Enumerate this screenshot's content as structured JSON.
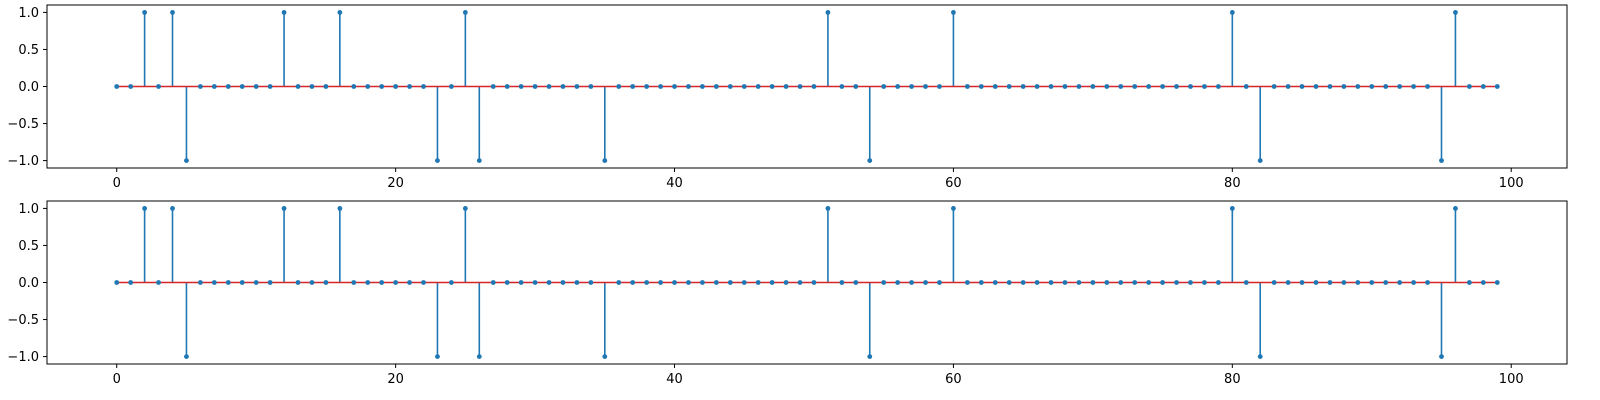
{
  "chart_data": [
    {
      "type": "stem",
      "x": [
        0,
        1,
        2,
        3,
        4,
        5,
        6,
        7,
        8,
        9,
        10,
        11,
        12,
        13,
        14,
        15,
        16,
        17,
        18,
        19,
        20,
        21,
        22,
        23,
        24,
        25,
        26,
        27,
        28,
        29,
        30,
        31,
        32,
        33,
        34,
        35,
        36,
        37,
        38,
        39,
        40,
        41,
        42,
        43,
        44,
        45,
        46,
        47,
        48,
        49,
        50,
        51,
        52,
        53,
        54,
        55,
        56,
        57,
        58,
        59,
        60,
        61,
        62,
        63,
        64,
        65,
        66,
        67,
        68,
        69,
        70,
        71,
        72,
        73,
        74,
        75,
        76,
        77,
        78,
        79,
        80,
        81,
        82,
        83,
        84,
        85,
        86,
        87,
        88,
        89,
        90,
        91,
        92,
        93,
        94,
        95,
        96,
        97,
        98,
        99
      ],
      "values": [
        0,
        0,
        1,
        0,
        1,
        -1,
        0,
        0,
        0,
        0,
        0,
        0,
        1,
        0,
        0,
        0,
        1,
        0,
        0,
        0,
        0,
        0,
        0,
        -1,
        0,
        1,
        -1,
        0,
        0,
        0,
        0,
        0,
        0,
        0,
        0,
        -1,
        0,
        0,
        0,
        0,
        0,
        0,
        0,
        0,
        0,
        0,
        0,
        0,
        0,
        0,
        0,
        1,
        0,
        0,
        -1,
        0,
        0,
        0,
        0,
        0,
        1,
        0,
        0,
        0,
        0,
        0,
        0,
        0,
        0,
        0,
        0,
        0,
        0,
        0,
        0,
        0,
        0,
        0,
        0,
        0,
        1,
        0,
        -1,
        0,
        0,
        0,
        0,
        0,
        0,
        0,
        0,
        0,
        0,
        0,
        0,
        -1,
        1,
        0,
        0,
        0
      ],
      "xlim": [
        -5,
        104
      ],
      "ylim": [
        -1.1,
        1.1
      ],
      "xticks": [
        "0",
        "20",
        "40",
        "60",
        "80",
        "100"
      ],
      "yticks": [
        "1.0",
        "0.5",
        "0.0",
        "−0.5",
        "−1.0"
      ],
      "grid": false
    },
    {
      "type": "stem",
      "x": [
        0,
        1,
        2,
        3,
        4,
        5,
        6,
        7,
        8,
        9,
        10,
        11,
        12,
        13,
        14,
        15,
        16,
        17,
        18,
        19,
        20,
        21,
        22,
        23,
        24,
        25,
        26,
        27,
        28,
        29,
        30,
        31,
        32,
        33,
        34,
        35,
        36,
        37,
        38,
        39,
        40,
        41,
        42,
        43,
        44,
        45,
        46,
        47,
        48,
        49,
        50,
        51,
        52,
        53,
        54,
        55,
        56,
        57,
        58,
        59,
        60,
        61,
        62,
        63,
        64,
        65,
        66,
        67,
        68,
        69,
        70,
        71,
        72,
        73,
        74,
        75,
        76,
        77,
        78,
        79,
        80,
        81,
        82,
        83,
        84,
        85,
        86,
        87,
        88,
        89,
        90,
        91,
        92,
        93,
        94,
        95,
        96,
        97,
        98,
        99
      ],
      "values": [
        0,
        0,
        1,
        0,
        1,
        -1,
        0,
        0,
        0,
        0,
        0,
        0,
        1,
        0,
        0,
        0,
        1,
        0,
        0,
        0,
        0,
        0,
        0,
        -1,
        0,
        1,
        -1,
        0,
        0,
        0,
        0,
        0,
        0,
        0,
        0,
        -1,
        0,
        0,
        0,
        0,
        0,
        0,
        0,
        0,
        0,
        0,
        0,
        0,
        0,
        0,
        0,
        1,
        0,
        0,
        -1,
        0,
        0,
        0,
        0,
        0,
        1,
        0,
        0,
        0,
        0,
        0,
        0,
        0,
        0,
        0,
        0,
        0,
        0,
        0,
        0,
        0,
        0,
        0,
        0,
        0,
        1,
        0,
        -1,
        0,
        0,
        0,
        0,
        0,
        0,
        0,
        0,
        0,
        0,
        0,
        0,
        -1,
        1,
        0,
        0,
        0
      ],
      "xlim": [
        -5,
        104
      ],
      "ylim": [
        -1.1,
        1.1
      ],
      "xticks": [
        "0",
        "20",
        "40",
        "60",
        "80",
        "100"
      ],
      "yticks": [
        "1.0",
        "0.5",
        "0.0",
        "−0.5",
        "−1.0"
      ],
      "grid": false
    }
  ],
  "colors": {
    "stem": "#1f77b4",
    "baseline": "#d62728",
    "axes": "#000000"
  }
}
